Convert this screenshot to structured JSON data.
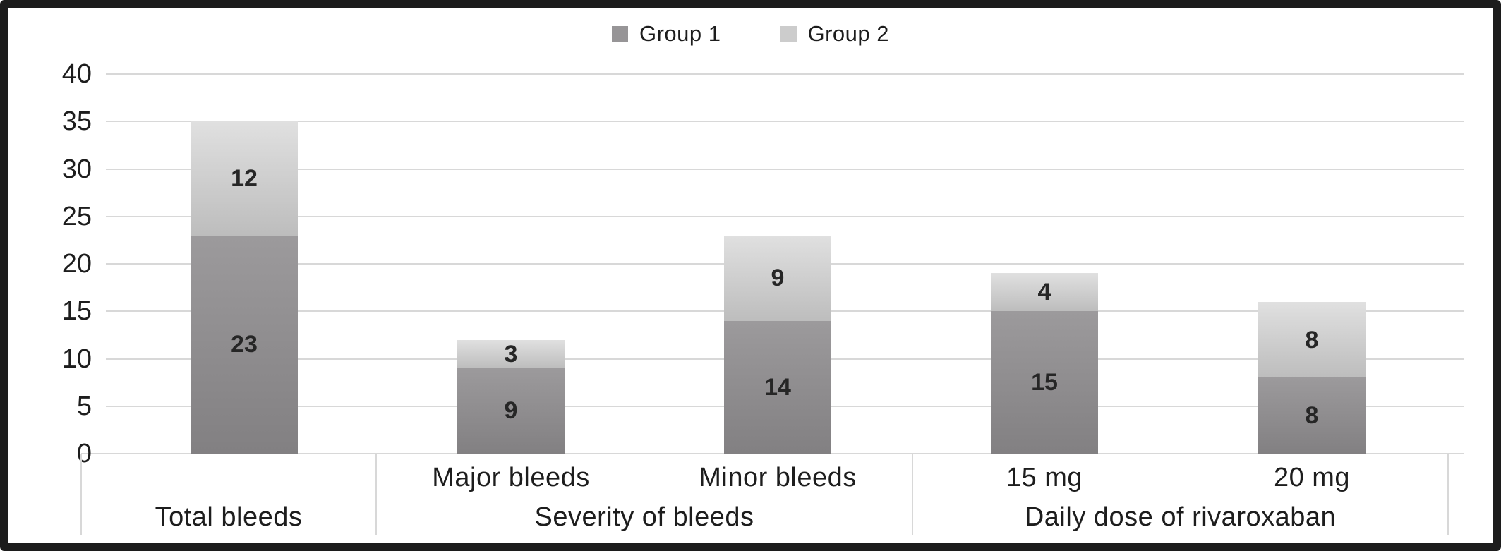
{
  "figure": {
    "frame_color": "#1c1c1c",
    "background_color": "#ffffff",
    "text_color": "#1d1d1d"
  },
  "legend": {
    "items": [
      {
        "label": "Group 1",
        "swatch_color": "#979597"
      },
      {
        "label": "Group 2",
        "swatch_color": "#cccccc"
      }
    ]
  },
  "chart_data": {
    "type": "bar",
    "stacked": true,
    "title": "",
    "xlabel": "",
    "ylabel": "",
    "categories": [
      "Total bleeds",
      "Major bleeds",
      "Minor bleeds",
      "15 mg",
      "20 mg"
    ],
    "series": [
      {
        "name": "Group 1",
        "values": [
          23,
          9,
          14,
          15,
          8
        ],
        "color_top": "#9c9a9c",
        "color_bottom": "#828082"
      },
      {
        "name": "Group 2",
        "values": [
          12,
          3,
          9,
          4,
          8
        ],
        "color_top": "#e0e0e0",
        "color_bottom": "#bdbdbd"
      }
    ],
    "stack_totals": [
      35,
      12,
      23,
      19,
      16
    ],
    "category_axis_row": [
      "",
      "Major bleeds",
      "Minor bleeds",
      "15 mg",
      "20 mg"
    ],
    "groups": [
      {
        "label": "Total bleeds",
        "span": [
          0,
          0
        ]
      },
      {
        "label": "Severity of bleeds",
        "span": [
          1,
          2
        ]
      },
      {
        "label": "Daily dose of rivaroxaban",
        "span": [
          3,
          4
        ]
      }
    ],
    "y_ticks": [
      0,
      5,
      10,
      15,
      20,
      25,
      30,
      35,
      40
    ],
    "ylim": [
      0,
      40
    ],
    "grid": true,
    "gridline_color": "#d8d8d8",
    "legend_position": "top",
    "value_labels_shown": true,
    "value_label_color": "#262626"
  }
}
